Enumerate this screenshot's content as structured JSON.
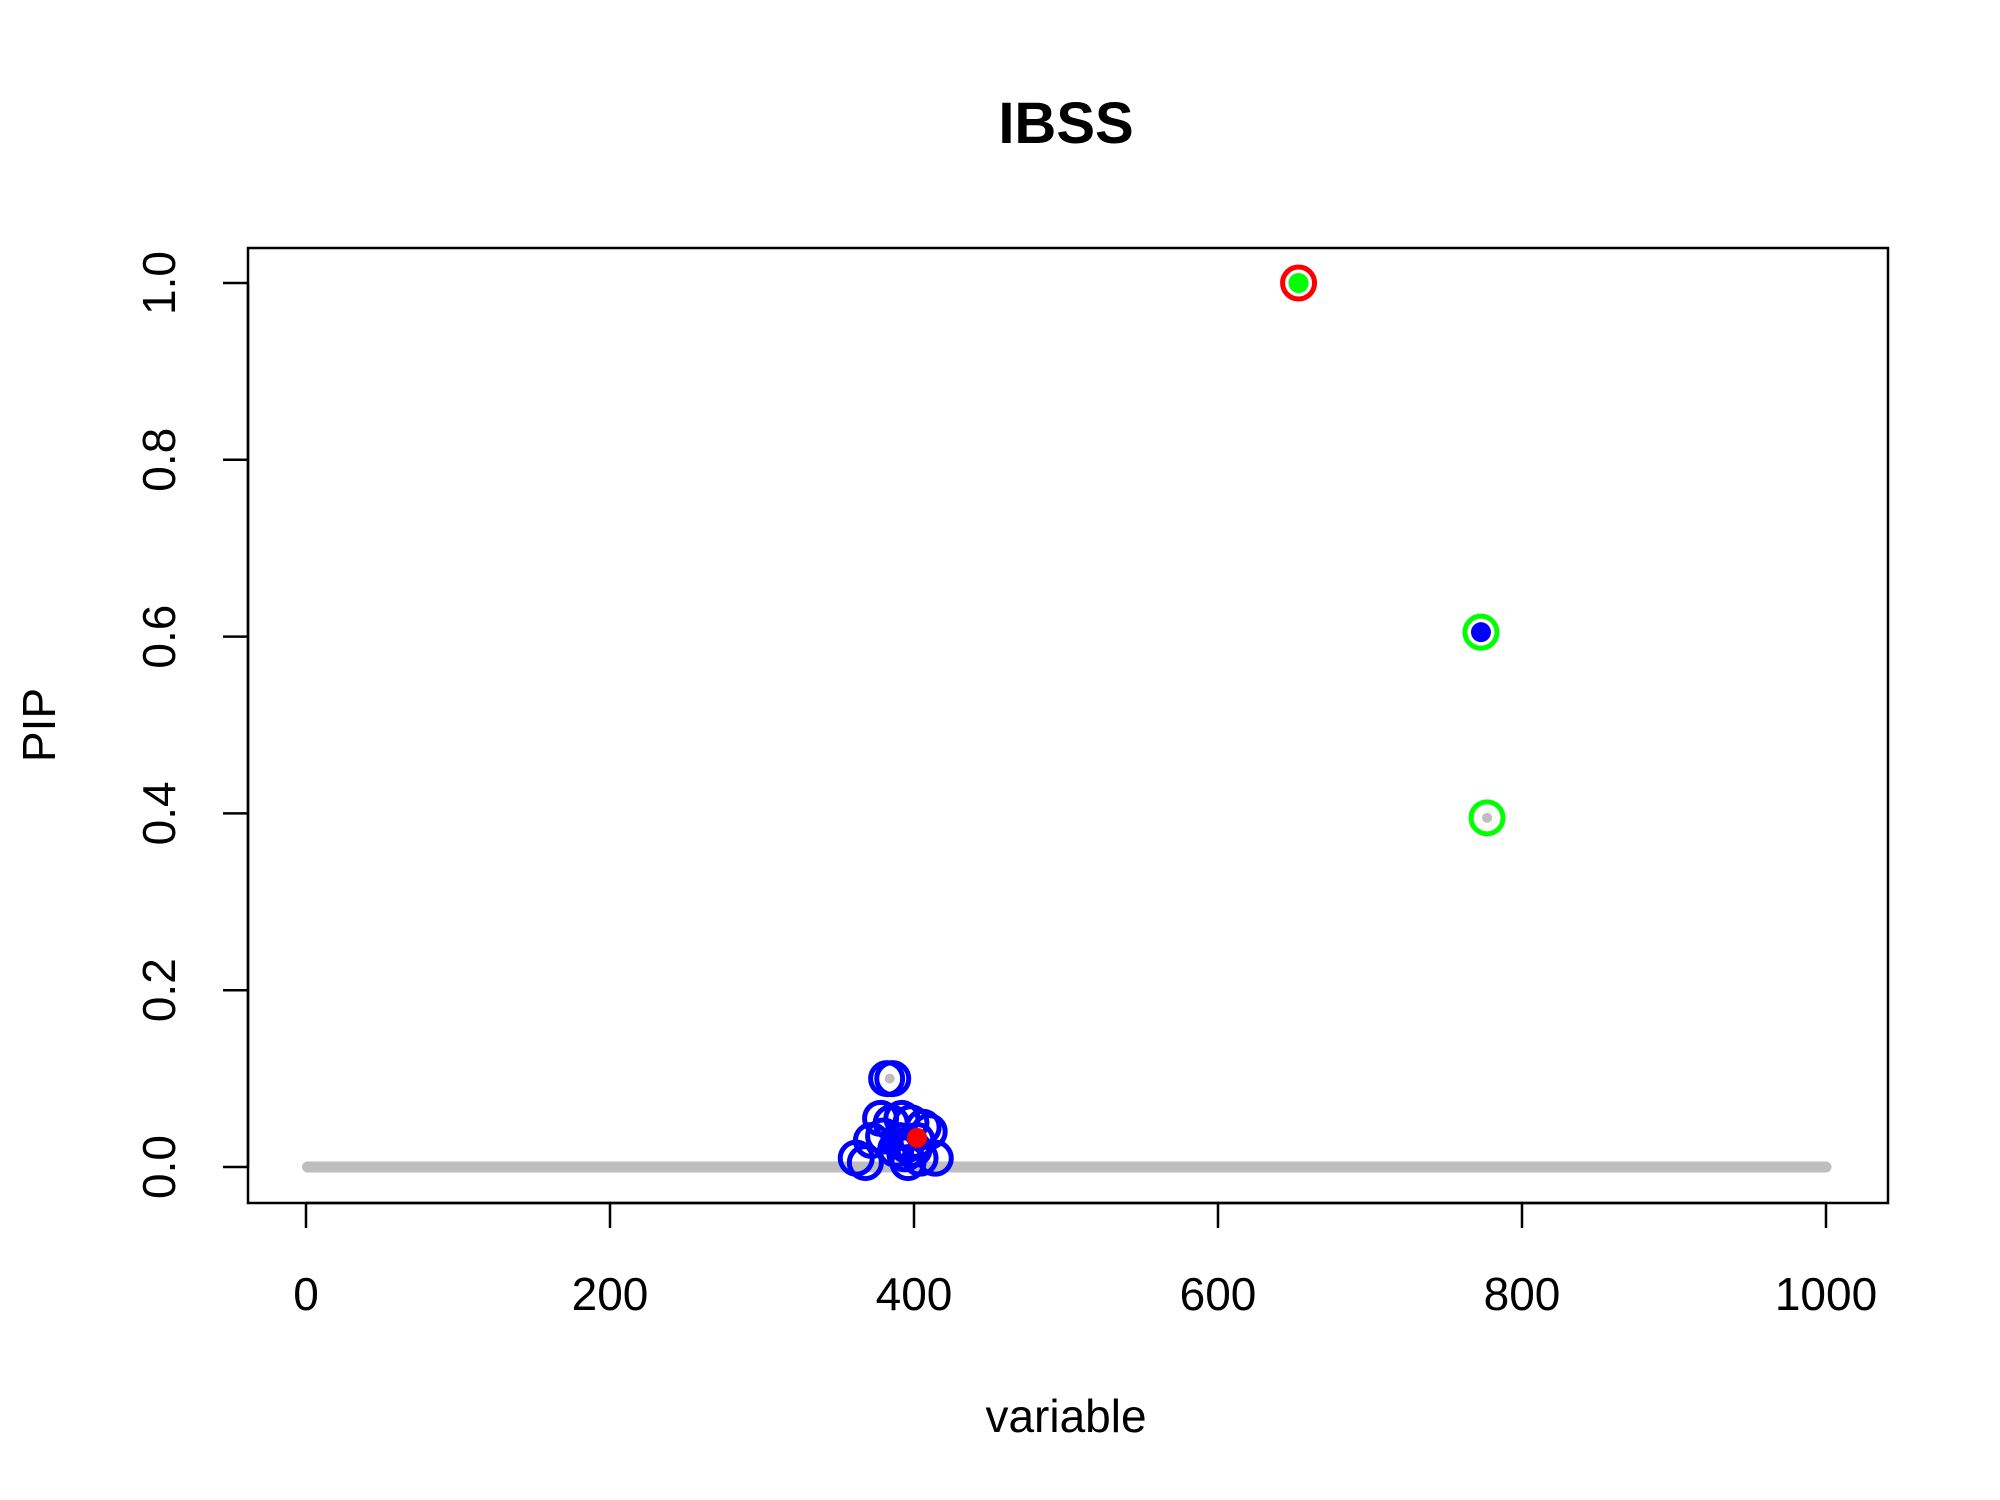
{
  "chart_data": {
    "type": "scatter",
    "title": "IBSS",
    "xlabel": "variable",
    "ylabel": "PIP",
    "xlim": [
      0,
      1000
    ],
    "ylim": [
      0,
      1
    ],
    "xticks": [
      "0",
      "200",
      "400",
      "600",
      "800",
      "1000"
    ],
    "yticks": [
      "0.0",
      "0.2",
      "0.4",
      "0.6",
      "0.8",
      "1.0"
    ],
    "grid": false,
    "legend": "none",
    "colors": {
      "baseline": "#bebebe",
      "red": "#ff0000",
      "green": "#00ff00",
      "blue": "#0000ff",
      "grey": "#bebebe"
    },
    "baseline": {
      "x_from": 1,
      "x_to": 1000,
      "y": 0
    },
    "series": [
      {
        "marker": "open-circle",
        "color": "#0000ff",
        "points": [
          {
            "x": 382,
            "y": 0.1
          },
          {
            "x": 386,
            "y": 0.1
          },
          {
            "x": 378,
            "y": 0.055
          },
          {
            "x": 385,
            "y": 0.05
          },
          {
            "x": 392,
            "y": 0.055
          },
          {
            "x": 398,
            "y": 0.05
          },
          {
            "x": 406,
            "y": 0.045
          },
          {
            "x": 410,
            "y": 0.04
          },
          {
            "x": 372,
            "y": 0.03
          },
          {
            "x": 380,
            "y": 0.035
          },
          {
            "x": 390,
            "y": 0.03
          },
          {
            "x": 395,
            "y": 0.025
          },
          {
            "x": 402,
            "y": 0.03
          },
          {
            "x": 388,
            "y": 0.02
          },
          {
            "x": 400,
            "y": 0.02
          },
          {
            "x": 394,
            "y": 0.015
          },
          {
            "x": 362,
            "y": 0.01
          },
          {
            "x": 368,
            "y": 0.005
          },
          {
            "x": 396,
            "y": 0.005
          },
          {
            "x": 404,
            "y": 0.01
          },
          {
            "x": 414,
            "y": 0.01
          }
        ]
      },
      {
        "marker": "open-circle",
        "color": "#ff0000",
        "points": [
          {
            "x": 653,
            "y": 1.0
          }
        ]
      },
      {
        "marker": "open-circle",
        "color": "#00ff00",
        "points": [
          {
            "x": 773,
            "y": 0.605
          },
          {
            "x": 777,
            "y": 0.395
          }
        ]
      },
      {
        "marker": "filled-dot",
        "color": "#00ff00",
        "points": [
          {
            "x": 653,
            "y": 1.0
          }
        ]
      },
      {
        "marker": "filled-dot",
        "color": "#0000ff",
        "points": [
          {
            "x": 773,
            "y": 0.605
          }
        ]
      },
      {
        "marker": "filled-dot",
        "color": "#ff0000",
        "points": [
          {
            "x": 402,
            "y": 0.033
          }
        ]
      },
      {
        "marker": "small-dot",
        "color": "#bebebe",
        "points": [
          {
            "x": 777,
            "y": 0.395
          },
          {
            "x": 384,
            "y": 0.1
          }
        ]
      }
    ]
  }
}
